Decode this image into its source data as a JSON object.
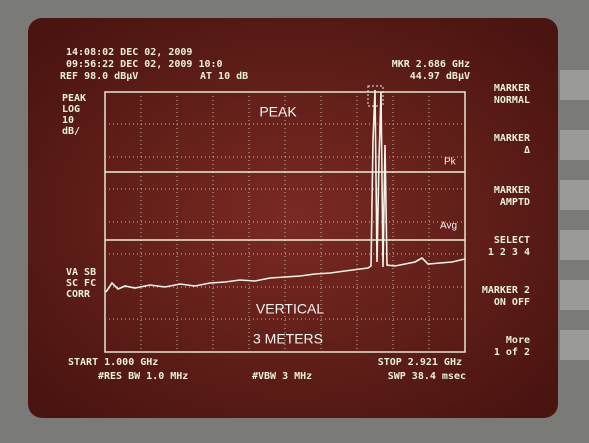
{
  "header": {
    "time": "14:08:02 DEC 02, 2009",
    "time2": "09:56:22 DEC 02, 2009 10:0",
    "ref": "REF 98.0 dBµV",
    "atten": "AT 10 dB",
    "marker_freq": "MKR 2.686 GHz",
    "marker_level": "44.97 dBµV"
  },
  "left_labels": [
    "PEAK",
    "LOG",
    "10",
    "dB/"
  ],
  "left_labels2": [
    "VA SB",
    "SC FC",
    "CORR"
  ],
  "overlay": {
    "top": "PEAK",
    "pk": "Pk",
    "avg": "Avg",
    "bottom1": "VERTICAL",
    "bottom2": "3 METERS"
  },
  "footer": {
    "start": "START 1.000 GHz",
    "rbw": "#RES BW 1.0 MHz",
    "vbw": "#VBW 3 MHz",
    "stop": "STOP 2.921 GHz",
    "sweep": "SWP 38.4 msec"
  },
  "softkeys": [
    [
      "MARKER",
      "NORMAL"
    ],
    [
      "MARKER",
      "Δ"
    ],
    [
      "MARKER",
      "AMPTD"
    ],
    [
      "SELECT",
      "1 2 3 4"
    ],
    [
      "MARKER 2",
      "ON OFF"
    ],
    [
      "More",
      "1 of 2"
    ]
  ]
}
